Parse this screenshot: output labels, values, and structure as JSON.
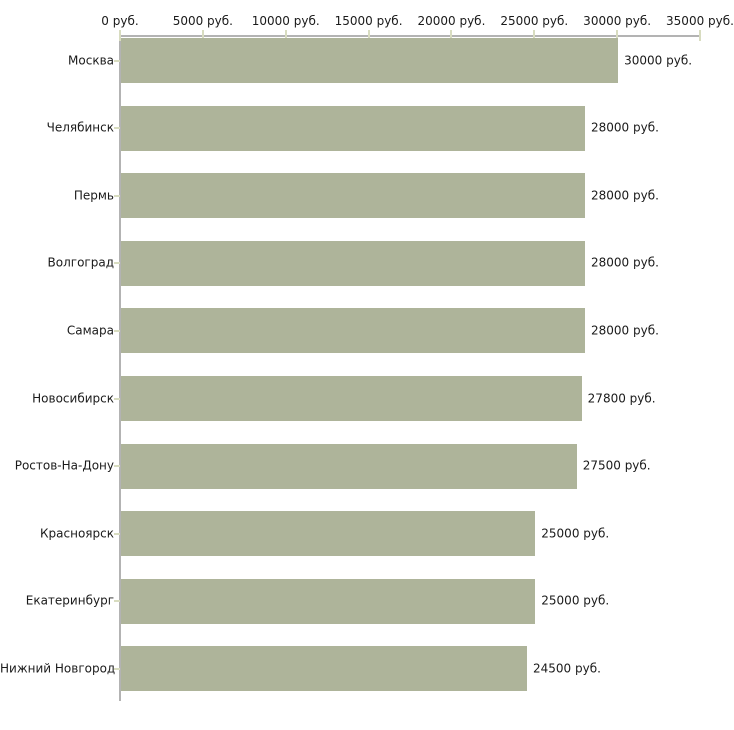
{
  "chart_data": {
    "type": "bar",
    "orientation": "horizontal",
    "title": "",
    "xlabel": "",
    "ylabel": "",
    "unit": "руб.",
    "categories": [
      "Москва",
      "Челябинск",
      "Пермь",
      "Волгоград",
      "Самара",
      "Новосибирск",
      "Ростов-На-Дону",
      "Красноярск",
      "Екатеринбург",
      "Нижний Новгород"
    ],
    "values": [
      30000,
      28000,
      28000,
      28000,
      28000,
      27800,
      27500,
      25000,
      25000,
      24500
    ],
    "value_labels": [
      "30000 руб.",
      "28000 руб.",
      "28000 руб.",
      "28000 руб.",
      "28000 руб.",
      "27800 руб.",
      "27500 руб.",
      "25000 руб.",
      "25000 руб.",
      "24500 руб."
    ],
    "xlim": [
      0,
      35000
    ],
    "x_ticks": [
      0,
      5000,
      10000,
      15000,
      20000,
      25000,
      30000,
      35000
    ],
    "x_tick_labels": [
      "0 руб.",
      "5000 руб.",
      "10000 руб.",
      "15000 руб.",
      "20000 руб.",
      "25000 руб.",
      "30000 руб.",
      "35000 руб."
    ],
    "grid": false,
    "legend": false,
    "tick_label_position": "top",
    "colors": {
      "bar": "#aeb49a",
      "tick": "#d8dcc0",
      "axis": "#b3b3b3",
      "text": "#1a1a1a",
      "background": "#ffffff"
    }
  }
}
